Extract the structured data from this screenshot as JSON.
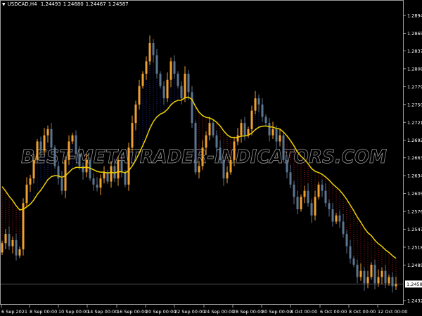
{
  "header": {
    "symbol": "USDCAD,H4",
    "open": "1.24493",
    "high": "1.24680",
    "low": "1.24467",
    "close": "1.24587"
  },
  "watermark": "BEST-METATRADER-INDICATORS.COM",
  "colors": {
    "background": "#000000",
    "bull": "#f0a030",
    "bear": "#5c7590",
    "ma": "#f0d000",
    "fill_above": "#1a2fb0",
    "fill_below": "#b01818",
    "axis": "#c0c0c0"
  },
  "chart_data": {
    "type": "candlestick",
    "ylim": [
      1.2422,
      1.2916
    ],
    "y_ticks": [
      "1.28945",
      "1.28655",
      "1.28370",
      "1.28080",
      "1.27790",
      "1.27500",
      "1.27210",
      "1.26920",
      "1.26635",
      "1.26345",
      "1.26055",
      "1.25765",
      "1.25475",
      "1.25185",
      "1.24895",
      "1.24320"
    ],
    "current_price": "1.24587",
    "x_ticks": [
      "6 Sep 2021",
      "8 Sep 00:00",
      "10 Sep 00:00",
      "14 Sep 00:00",
      "16 Sep 00:00",
      "20 Sep 00:00",
      "22 Sep 00:00",
      "24 Sep 00:00",
      "28 Sep 00:00",
      "30 Sep 00:00",
      "4 Oct 00:00",
      "6 Oct 00:00",
      "8 Oct 00:00",
      "12 Oct 00:00"
    ],
    "first_open": 1.251,
    "closes": [
      1.2525,
      1.254,
      1.252,
      1.253,
      1.2505,
      1.2515,
      1.259,
      1.262,
      1.263,
      1.266,
      1.269,
      1.2675,
      1.27,
      1.271,
      1.268,
      1.265,
      1.263,
      1.261,
      1.266,
      1.269,
      1.27,
      1.267,
      1.265,
      1.264,
      1.266,
      1.263,
      1.262,
      1.2615,
      1.263,
      1.264,
      1.2625,
      1.265,
      1.263,
      1.266,
      1.264,
      1.262,
      1.268,
      1.272,
      1.275,
      1.278,
      1.28,
      1.282,
      1.285,
      1.283,
      1.28,
      1.278,
      1.276,
      1.279,
      1.282,
      1.28,
      1.278,
      1.276,
      1.28,
      1.277,
      1.272,
      1.264,
      1.265,
      1.268,
      1.27,
      1.272,
      1.27,
      1.268,
      1.266,
      1.263,
      1.264,
      1.266,
      1.269,
      1.27,
      1.272,
      1.27,
      1.271,
      1.274,
      1.276,
      1.275,
      1.273,
      1.272,
      1.27,
      1.271,
      1.269,
      1.27,
      1.266,
      1.264,
      1.262,
      1.26,
      1.258,
      1.26,
      1.261,
      1.259,
      1.257,
      1.26,
      1.262,
      1.261,
      1.259,
      1.258,
      1.256,
      1.257,
      1.256,
      1.254,
      1.252,
      1.25,
      1.249,
      1.247,
      1.248,
      1.246,
      1.247,
      1.249,
      1.246,
      1.247,
      1.248,
      1.246,
      1.247,
      1.2455,
      1.24587
    ]
  }
}
